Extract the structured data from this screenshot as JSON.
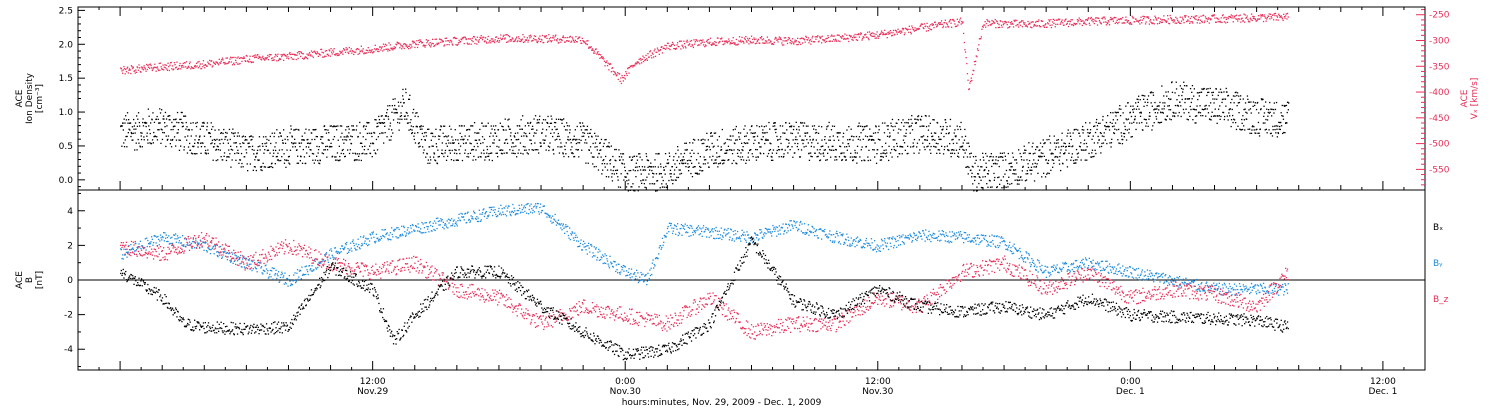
{
  "chart_data": [
    {
      "type": "scatter",
      "panel": "top",
      "ylabel_lines": [
        "ACE",
        "Ion Density",
        "[cm⁻³]"
      ],
      "ylim": [
        -0.15,
        2.55
      ],
      "yticks": [
        "0.0",
        "0.5",
        "1.0",
        "1.5",
        "2.0",
        "2.5"
      ],
      "ytick_values": [
        0.0,
        0.5,
        1.0,
        1.5,
        2.0,
        2.5
      ],
      "y2label_lines": [
        "ACE",
        "Vₓ [km/s]"
      ],
      "y2lim": [
        -590,
        -235
      ],
      "y2ticks": [
        "-250",
        "-300",
        "-350",
        "-400",
        "-450",
        "-500",
        "-550"
      ],
      "y2tick_values": [
        -250,
        -300,
        -350,
        -400,
        -450,
        -500,
        -550
      ],
      "series": [
        {
          "color": "#000000",
          "x_hours": [
            0,
            2,
            4,
            6,
            8,
            10,
            12,
            13.5,
            14.5,
            16,
            18,
            20,
            22,
            24,
            26,
            28,
            30,
            32,
            34,
            36,
            38,
            40,
            40.5,
            42,
            44,
            46,
            48,
            50,
            52,
            54,
            55.5
          ],
          "values": [
            0.7,
            0.8,
            0.6,
            0.4,
            0.5,
            0.55,
            0.6,
            1.1,
            0.5,
            0.55,
            0.6,
            0.7,
            0.55,
            0.1,
            0.15,
            0.45,
            0.55,
            0.6,
            0.55,
            0.55,
            0.7,
            0.6,
            0.1,
            0.15,
            0.35,
            0.6,
            0.9,
            1.2,
            1.1,
            0.95,
            0.9
          ]
        },
        {
          "color": "#e8305a",
          "axis": "right",
          "x_hours": [
            0,
            2,
            4,
            6,
            8,
            10,
            12,
            14,
            16,
            18,
            20,
            22,
            23.8,
            24.5,
            26,
            28,
            30,
            32,
            34,
            36,
            38,
            40,
            40.3,
            41,
            43,
            46,
            48,
            50,
            52,
            54,
            55.5
          ],
          "values": [
            -357,
            -350,
            -345,
            -335,
            -330,
            -322,
            -315,
            -305,
            -300,
            -295,
            -295,
            -297,
            -375,
            -340,
            -310,
            -302,
            -298,
            -300,
            -295,
            -288,
            -275,
            -262,
            -395,
            -265,
            -268,
            -262,
            -260,
            -258,
            -257,
            -255,
            -253
          ]
        }
      ]
    },
    {
      "type": "scatter",
      "panel": "bottom",
      "ylabel_lines": [
        "ACE",
        "B",
        "[nT]"
      ],
      "ylim": [
        -5.2,
        5.2
      ],
      "yticks": [
        "-4",
        "-2",
        "0",
        "2",
        "4"
      ],
      "ytick_values": [
        -4,
        -2,
        0,
        2,
        4
      ],
      "zero_line": true,
      "series": [
        {
          "name": "Bₓ",
          "color": "#000000",
          "x_hours": [
            0,
            2,
            3,
            4,
            6,
            8,
            10,
            12,
            13,
            14,
            16,
            18,
            20,
            22,
            24,
            26,
            28,
            30,
            32,
            34,
            36,
            38,
            40,
            42,
            44,
            46,
            48,
            50,
            52,
            54,
            55.5
          ],
          "values": [
            0.5,
            -1.0,
            -2.5,
            -2.7,
            -2.8,
            -2.7,
            0.8,
            -0.5,
            -3.5,
            -2.0,
            0.5,
            0.5,
            -1.5,
            -3.0,
            -4.3,
            -4.0,
            -2.5,
            2.3,
            -1.2,
            -2.0,
            -0.5,
            -1.5,
            -1.8,
            -1.5,
            -2.0,
            -1.0,
            -2.0,
            -2.1,
            -2.2,
            -2.3,
            -2.7
          ]
        },
        {
          "name": "Bᵧ",
          "color": "#1f8ce0",
          "x_hours": [
            0,
            2,
            4,
            6,
            8,
            10,
            12,
            14,
            16,
            18,
            20,
            22,
            24,
            25,
            26,
            28,
            30,
            32,
            34,
            36,
            38,
            40,
            42,
            44,
            46,
            48,
            50,
            52,
            54,
            55.5
          ],
          "values": [
            1.5,
            2.5,
            2.0,
            1.0,
            0.0,
            1.5,
            2.5,
            3.0,
            3.5,
            4.0,
            4.2,
            2.0,
            0.5,
            0.0,
            3.0,
            2.8,
            2.5,
            3.2,
            2.5,
            2.0,
            2.6,
            2.5,
            2.2,
            0.5,
            1.0,
            0.5,
            0.0,
            -0.5,
            -0.5,
            -0.5
          ]
        },
        {
          "name": "B_z",
          "color": "#e8305a",
          "x_hours": [
            0,
            2,
            4,
            6,
            8,
            10,
            12,
            14,
            16,
            18,
            20,
            22,
            24,
            26,
            28,
            30,
            32,
            34,
            36,
            38,
            40,
            42,
            44,
            46,
            48,
            50,
            52,
            54,
            55.5
          ],
          "values": [
            2.0,
            1.5,
            2.5,
            1.0,
            2.0,
            1.0,
            0.5,
            1.0,
            -0.5,
            -1.0,
            -2.5,
            -1.5,
            -2.0,
            -2.5,
            -1.0,
            -3.0,
            -2.5,
            -2.5,
            -1.0,
            -1.5,
            0.5,
            1.0,
            -0.5,
            0.5,
            -1.0,
            -0.5,
            -0.8,
            -1.5,
            0.5
          ]
        }
      ]
    }
  ],
  "xaxis": {
    "range_hours": [
      -2,
      62
    ],
    "major_ticks": [
      {
        "hour": 12,
        "time": "12:00",
        "date": "Nov.29"
      },
      {
        "hour": 24,
        "time": "0:00",
        "date": "Nov.30"
      },
      {
        "hour": 36,
        "time": "12:00",
        "date": "Nov.30"
      },
      {
        "hour": 48,
        "time": "0:00",
        "date": "Dec. 1"
      },
      {
        "hour": 60,
        "time": "12:00",
        "date": "Dec. 1"
      }
    ],
    "title": "hours:minutes, Nov. 29, 2009 - Dec. 1, 2009"
  },
  "legend_bottom": [
    {
      "label": "Bₓ",
      "color": "#000000"
    },
    {
      "label": "Bᵧ",
      "color": "#1f8ce0"
    },
    {
      "label": "B_z",
      "color": "#e8305a"
    }
  ]
}
